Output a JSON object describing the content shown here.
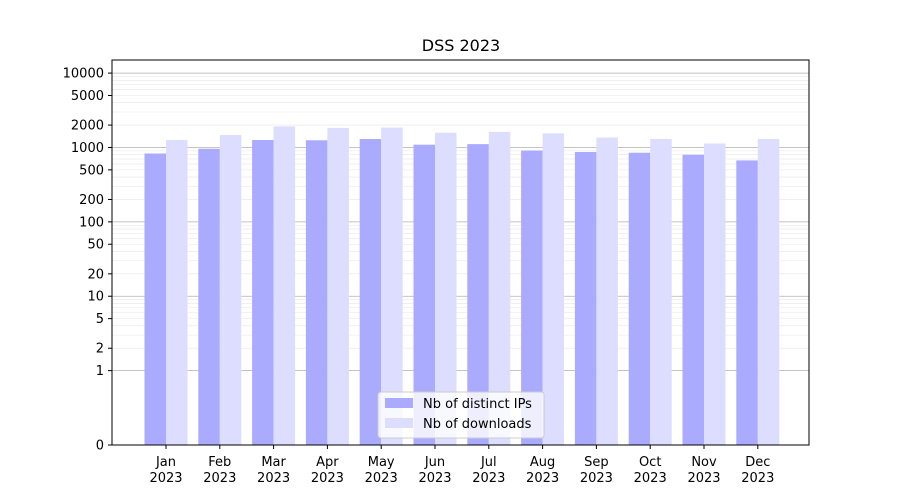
{
  "chart_data": {
    "type": "bar",
    "title": "DSS 2023",
    "categories": [
      "Jan\n2023",
      "Feb\n2023",
      "Mar\n2023",
      "Apr\n2023",
      "May\n2023",
      "Jun\n2023",
      "Jul\n2023",
      "Aug\n2023",
      "Sep\n2023",
      "Oct\n2023",
      "Nov\n2023",
      "Dec\n2023"
    ],
    "series": [
      {
        "name": "Nb of distinct IPs",
        "color": "#aaaaff",
        "values": [
          830,
          960,
          1260,
          1250,
          1300,
          1090,
          1110,
          910,
          870,
          850,
          800,
          670
        ]
      },
      {
        "name": "Nb of downloads",
        "color": "#ddddff",
        "values": [
          1260,
          1470,
          1920,
          1830,
          1850,
          1580,
          1620,
          1550,
          1360,
          1300,
          1130,
          1300
        ]
      }
    ],
    "y_scale": "symlog",
    "yticks": [
      0,
      1,
      2,
      5,
      10,
      20,
      50,
      100,
      200,
      500,
      1000,
      2000,
      5000,
      10000
    ],
    "yticklabels": [
      "0",
      "1",
      "2",
      "5",
      "10",
      "20",
      "50",
      "100",
      "200",
      "500",
      "1000",
      "2000",
      "5000",
      "10000"
    ],
    "ylim": [
      0,
      15000
    ],
    "grid": "major and minor horizontal",
    "legend_position": "lower center"
  }
}
